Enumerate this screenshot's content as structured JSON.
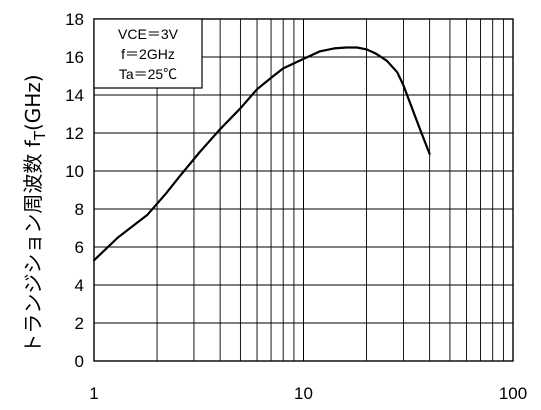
{
  "chart_data": {
    "type": "line",
    "xscale": "log",
    "xlim": [
      1,
      100
    ],
    "ylim": [
      0,
      18
    ],
    "xticks": [
      1,
      10,
      100
    ],
    "xtick_labels": [
      "1",
      "10",
      "100"
    ],
    "yticks": [
      0,
      2,
      4,
      6,
      8,
      10,
      12,
      14,
      16,
      18
    ],
    "ytick_labels": [
      "0",
      "2",
      "4",
      "6",
      "8",
      "10",
      "12",
      "14",
      "16",
      "18"
    ],
    "ylabel": "トランジション周波数",
    "ylabel_symbol": "f",
    "ylabel_subscript": "T",
    "ylabel_unit": "(GHz)",
    "xlabel": "",
    "title": "",
    "grid": true,
    "annotations": [
      "VCE＝3V",
      "f＝2GHz",
      "Ta＝25℃"
    ],
    "colors": {
      "line": "#000000",
      "grid": "#000000",
      "background": "#ffffff"
    },
    "series": [
      {
        "x": [
          1,
          1.3,
          1.8,
          2.2,
          2.6,
          3.2,
          4,
          5,
          6,
          7,
          8,
          10,
          12,
          14,
          16,
          18,
          20,
          22,
          25,
          28,
          30,
          33,
          36,
          40
        ],
        "y": [
          5.3,
          6.5,
          7.7,
          8.8,
          9.8,
          11,
          12.2,
          13.3,
          14.3,
          14.9,
          15.4,
          15.9,
          16.3,
          16.45,
          16.5,
          16.5,
          16.4,
          16.2,
          15.8,
          15.2,
          14.5,
          13.3,
          12.2,
          10.9
        ]
      }
    ]
  }
}
